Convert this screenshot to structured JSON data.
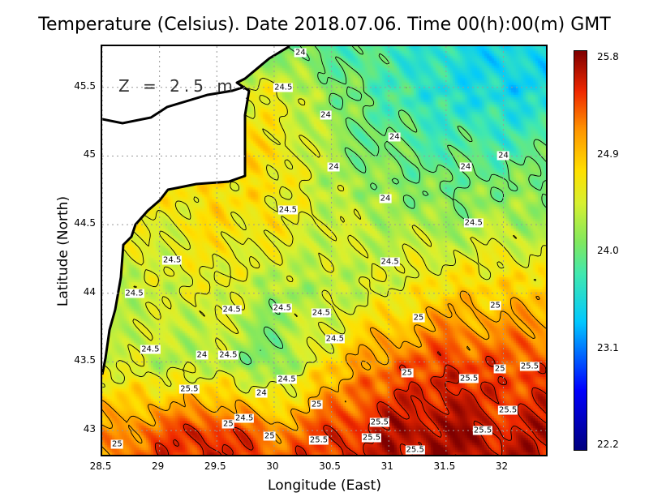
{
  "chart_data": {
    "type": "heatmap",
    "title": "Temperature (Celsius). Date 2018.07.06. Time 00(h):00(m) GMT",
    "annotation": "Z = 2.5 m",
    "xlabel": "Longitude (East)",
    "ylabel": "Latitude (North)",
    "xlim": [
      28.5,
      32.4
    ],
    "ylim": [
      42.8,
      45.8
    ],
    "xticks": [
      "28.5",
      "29",
      "29.5",
      "30",
      "30.5",
      "31",
      "31.5",
      "32"
    ],
    "yticks": [
      "43",
      "43.5",
      "44",
      "44.5",
      "45",
      "45.5"
    ],
    "grid": true,
    "colorbar": {
      "min": 22.2,
      "max": 25.8,
      "ticks": [
        "25.8",
        "24.9",
        "24.0",
        "23.1",
        "22.2"
      ],
      "colors": [
        "#000080",
        "#0000ff",
        "#00c8ff",
        "#40e8b0",
        "#80e860",
        "#d8f030",
        "#ffe000",
        "#ff9800",
        "#f02800",
        "#800000"
      ]
    },
    "grid_lon": [
      28.5,
      29,
      29.5,
      30,
      30.5,
      31,
      31.5,
      32,
      32.5
    ],
    "grid_lat": [
      45.8,
      45.5,
      45.0,
      44.5,
      44.0,
      43.5,
      43.0,
      42.8
    ],
    "values": [
      [
        null,
        null,
        null,
        24.0,
        23.9,
        23.8,
        23.6,
        23.5,
        23.5
      ],
      [
        null,
        null,
        null,
        24.5,
        24.1,
        23.8,
        23.6,
        23.5,
        23.5
      ],
      [
        null,
        null,
        null,
        24.7,
        24.2,
        24.0,
        23.9,
        23.9,
        24.0
      ],
      [
        null,
        24.5,
        24.7,
        24.6,
        24.4,
        24.3,
        24.2,
        24.3,
        24.2
      ],
      [
        24.3,
        24.4,
        24.5,
        24.2,
        24.3,
        24.5,
        24.8,
        24.8,
        24.9
      ],
      [
        24.5,
        24.3,
        24.3,
        24.0,
        24.8,
        25.2,
        25.4,
        25.3,
        25.3
      ],
      [
        25.0,
        25.3,
        25.5,
        25.1,
        25.4,
        25.6,
        25.7,
        25.5,
        25.6
      ],
      [
        25.1,
        25.4,
        25.5,
        25.3,
        25.4,
        25.6,
        25.7,
        25.6,
        25.6
      ]
    ],
    "contour_levels": [
      24,
      24.5,
      25,
      25.5
    ],
    "contour_labels": [
      {
        "t": "24",
        "lon": 30.23,
        "lat": 45.75
      },
      {
        "t": "24.5",
        "lon": 30.08,
        "lat": 45.5
      },
      {
        "t": "24",
        "lon": 30.45,
        "lat": 45.3
      },
      {
        "t": "24",
        "lon": 31.05,
        "lat": 45.14
      },
      {
        "t": "24",
        "lon": 30.52,
        "lat": 44.92
      },
      {
        "t": "24",
        "lon": 32.0,
        "lat": 45.0
      },
      {
        "t": "24",
        "lon": 31.67,
        "lat": 44.92
      },
      {
        "t": "24",
        "lon": 30.97,
        "lat": 44.69
      },
      {
        "t": "24.5",
        "lon": 30.12,
        "lat": 44.61
      },
      {
        "t": "24.5",
        "lon": 31.74,
        "lat": 44.51
      },
      {
        "t": "24.5",
        "lon": 29.11,
        "lat": 44.24
      },
      {
        "t": "24.5",
        "lon": 31.01,
        "lat": 44.23
      },
      {
        "t": "24.5",
        "lon": 28.78,
        "lat": 44.0
      },
      {
        "t": "24.5",
        "lon": 29.63,
        "lat": 43.88
      },
      {
        "t": "24.5",
        "lon": 30.07,
        "lat": 43.89
      },
      {
        "t": "24.5",
        "lon": 30.41,
        "lat": 43.86
      },
      {
        "t": "25",
        "lon": 31.26,
        "lat": 43.82
      },
      {
        "t": "25",
        "lon": 31.93,
        "lat": 43.91
      },
      {
        "t": "24.5",
        "lon": 30.53,
        "lat": 43.67
      },
      {
        "t": "24.5",
        "lon": 28.92,
        "lat": 43.59
      },
      {
        "t": "24",
        "lon": 29.37,
        "lat": 43.55
      },
      {
        "t": "24.5",
        "lon": 29.6,
        "lat": 43.55
      },
      {
        "t": "25",
        "lon": 31.16,
        "lat": 43.42
      },
      {
        "t": "25",
        "lon": 31.97,
        "lat": 43.45
      },
      {
        "t": "25.5",
        "lon": 32.23,
        "lat": 43.47
      },
      {
        "t": "24.5",
        "lon": 30.11,
        "lat": 43.37
      },
      {
        "t": "25.5",
        "lon": 31.7,
        "lat": 43.38
      },
      {
        "t": "25.5",
        "lon": 29.26,
        "lat": 43.3
      },
      {
        "t": "24",
        "lon": 29.89,
        "lat": 43.27
      },
      {
        "t": "25",
        "lon": 30.37,
        "lat": 43.19
      },
      {
        "t": "25.5",
        "lon": 32.04,
        "lat": 43.15
      },
      {
        "t": "24.5",
        "lon": 29.74,
        "lat": 43.09
      },
      {
        "t": "25",
        "lon": 29.6,
        "lat": 43.05
      },
      {
        "t": "25.5",
        "lon": 30.92,
        "lat": 43.06
      },
      {
        "t": "25",
        "lon": 29.96,
        "lat": 42.96
      },
      {
        "t": "25.5",
        "lon": 30.39,
        "lat": 42.93
      },
      {
        "t": "25.5",
        "lon": 30.85,
        "lat": 42.95
      },
      {
        "t": "25.5",
        "lon": 31.82,
        "lat": 43.0
      },
      {
        "t": "25.5",
        "lon": 31.23,
        "lat": 42.86
      },
      {
        "t": "25",
        "lon": 28.63,
        "lat": 42.9
      }
    ]
  }
}
